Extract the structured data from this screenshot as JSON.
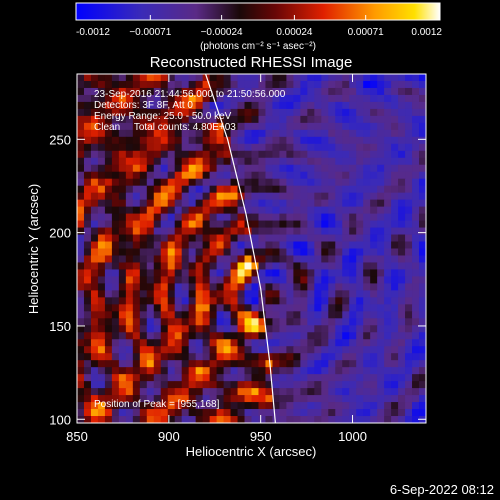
{
  "chart_data": {
    "type": "heatmap",
    "title": "Reconstructed RHESSI Image",
    "xlabel": "Heliocentric X (arcsec)",
    "ylabel": "Heliocentric Y (arcsec)",
    "xlim": [
      850,
      1040
    ],
    "ylim": [
      98,
      285
    ],
    "xticks": [
      850,
      900,
      950,
      1000
    ],
    "yticks": [
      100,
      150,
      200,
      250
    ],
    "colorbar": {
      "unit_label": "(photons cm⁻² s⁻¹ asec⁻²)",
      "range": [
        -0.0012,
        0.0012
      ],
      "tick_values": [
        -0.0012,
        -0.00071,
        -0.00024,
        0.00024,
        0.00071,
        0.0012
      ],
      "tick_labels": [
        "-0.0012",
        "−0.00071",
        "−0.00024",
        "0.00024",
        "0.00071",
        "0.0012"
      ],
      "colormap": "blue-purple-black-red-orange-yellow-white"
    },
    "annotations": {
      "time_range": "23-Sep-2016 21:44:56.000 to 21:50:56.000",
      "detectors": "Detectors: 3F 8F, Att 0",
      "energy": "Energy Range: 25.0 - 50.0 keV",
      "clean": "Clean     Total counts: 4.80E+03",
      "peak": "Position of Peak = [955,168]"
    },
    "peak": {
      "x": 955,
      "y": 168
    },
    "limb_line": [
      [
        920,
        285
      ],
      [
        932,
        250
      ],
      [
        942,
        210
      ],
      [
        950,
        170
      ],
      [
        955,
        130
      ],
      [
        958,
        98
      ]
    ]
  },
  "footer": {
    "date": "6-Sep-2022 08:12"
  },
  "colors": {
    "background": "#000000",
    "foreground": "#ffffff"
  }
}
